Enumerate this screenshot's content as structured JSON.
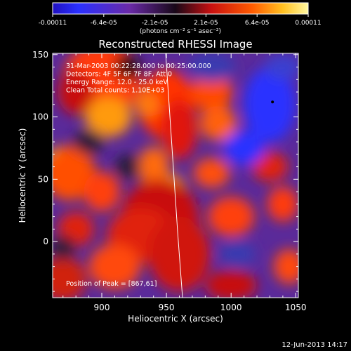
{
  "colorbar": {
    "tick_labels": [
      "-0.00011",
      "-6.4e-05",
      "-2.1e-05",
      "2.1e-05",
      "6.4e-05",
      "0.00011"
    ],
    "units_label": "(photons cm⁻² s⁻¹ asec⁻²)"
  },
  "chart_data": {
    "type": "heatmap",
    "title": "Reconstructed RHESSI Image",
    "xlabel": "Heliocentric X (arcsec)",
    "ylabel": "Heliocentric Y (arcsec)",
    "xlim": [
      862,
      1052
    ],
    "ylim": [
      -45,
      151
    ],
    "x_ticks": [
      900,
      950,
      1000,
      1050
    ],
    "y_ticks": [
      0,
      50,
      100,
      150
    ],
    "color_range": [
      -0.00011,
      0.00011
    ],
    "annotations": [
      "31-Mar-2003 00:22:28.000 to 00:25:00.000",
      "Detectors: 4F 5F 6F 7F 8F, Att 0",
      "Energy Range: 12.0 - 25.0 keV",
      "Clean     Total counts: 1.10E+03"
    ],
    "peak_label": "Position of Peak = [867,61]",
    "peak_position": [
      867,
      61
    ]
  },
  "footer": {
    "timestamp": "12-Jun-2013 14:17"
  }
}
